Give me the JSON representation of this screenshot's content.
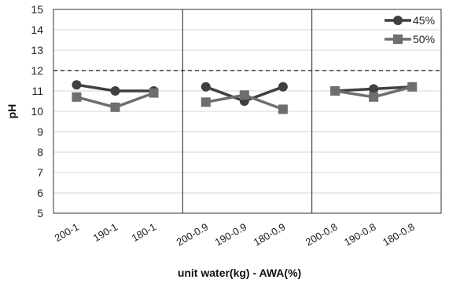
{
  "chart_data": {
    "type": "line",
    "xlabel": "unit water(kg) - AWA(%)",
    "ylabel": "pH",
    "ylim": [
      5,
      15
    ],
    "yticks": [
      5,
      6,
      7,
      8,
      9,
      10,
      11,
      12,
      13,
      14,
      15
    ],
    "categories": [
      "200-1",
      "190-1",
      "180-1",
      "200-0.9",
      "190-0.9",
      "180-0.9",
      "200-0.8",
      "190-0.8",
      "180-0.8"
    ],
    "groups": [
      [
        "200-1",
        "190-1",
        "180-1"
      ],
      [
        "200-0.9",
        "190-0.9",
        "180-0.9"
      ],
      [
        "200-0.8",
        "190-0.8",
        "180-0.8"
      ]
    ],
    "reference_line": {
      "y": 12,
      "style": "dashed"
    },
    "grid": true,
    "legend_position": "top-right",
    "series": [
      {
        "name": "45%",
        "marker": "circle",
        "color": "#404040",
        "values": [
          11.3,
          11.0,
          11.0,
          11.2,
          10.5,
          11.2,
          11.0,
          11.1,
          11.2
        ]
      },
      {
        "name": "50%",
        "marker": "square",
        "color": "#6e6e6e",
        "values": [
          10.7,
          10.2,
          10.9,
          10.45,
          10.8,
          10.1,
          11.0,
          10.7,
          11.2
        ]
      }
    ]
  }
}
